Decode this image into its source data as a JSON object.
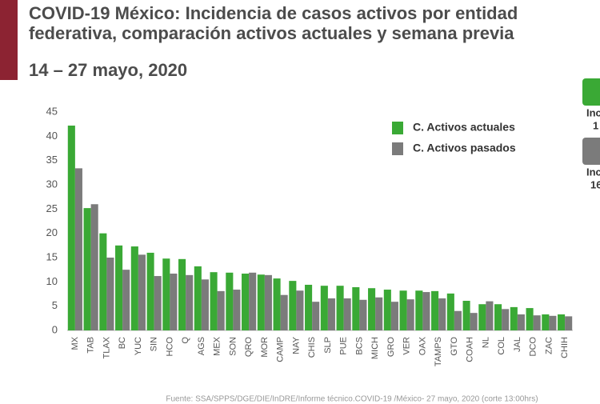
{
  "chart_data": {
    "type": "bar",
    "title": [
      "COVID-19 México: Incidencia de casos activos por entidad",
      "federativa, comparación activos actuales y semana previa"
    ],
    "subtitle": "14 – 27 mayo, 2020",
    "source": "Fuente: SSA/SPPS/DGE/DIE/InDRE/Informe técnico.COVID-19 /México- 27 mayo, 2020 (corte 13:00hrs)",
    "annotations": [
      "Inc",
      "1",
      "Inc",
      "16"
    ],
    "categories": [
      "MX",
      "TAB",
      "TLAX",
      "BC",
      "YUC",
      "SIN",
      "HCO",
      "Q",
      "AGS",
      "MEX",
      "SON",
      "QRO",
      "MOR",
      "CAMP",
      "NAY",
      "CHIS",
      "SLP",
      "PUE",
      "BCS",
      "MICH",
      "GRO",
      "VER",
      "OAX",
      "TAMPS",
      "GTO",
      "COAH",
      "NL",
      "COL",
      "JAL",
      "DCO",
      "ZAC",
      "CHIH"
    ],
    "series": [
      {
        "name": "C. Activos actuales",
        "color": "#3aa935",
        "values": [
          42.2,
          25.2,
          20,
          17.5,
          17.3,
          16,
          14.8,
          14.7,
          13.2,
          12,
          11.9,
          11.7,
          11.5,
          10.7,
          10.2,
          9.4,
          9.2,
          9.2,
          8.9,
          8.7,
          8.4,
          8.2,
          8.2,
          8.1,
          7.6,
          6.1,
          5.4,
          5.4,
          4.8,
          4.6,
          3.3,
          3.3
        ]
      },
      {
        "name": "C. Activos pasados",
        "color": "#7b7b7b",
        "values": [
          33.4,
          26,
          15,
          12.5,
          15.6,
          11.2,
          11.7,
          11.4,
          10.5,
          8.1,
          8.4,
          11.9,
          11.4,
          7.3,
          8.2,
          5.9,
          6.6,
          6.6,
          6.3,
          6.8,
          5.9,
          6.4,
          7.9,
          6.6,
          4,
          3.6,
          6,
          4.4,
          3.3,
          3.1,
          3,
          2.9
        ]
      }
    ],
    "ylim": [
      0,
      45
    ],
    "yticks": [
      0,
      5,
      10,
      15,
      20,
      25,
      30,
      35,
      40,
      45
    ],
    "grid": false
  }
}
